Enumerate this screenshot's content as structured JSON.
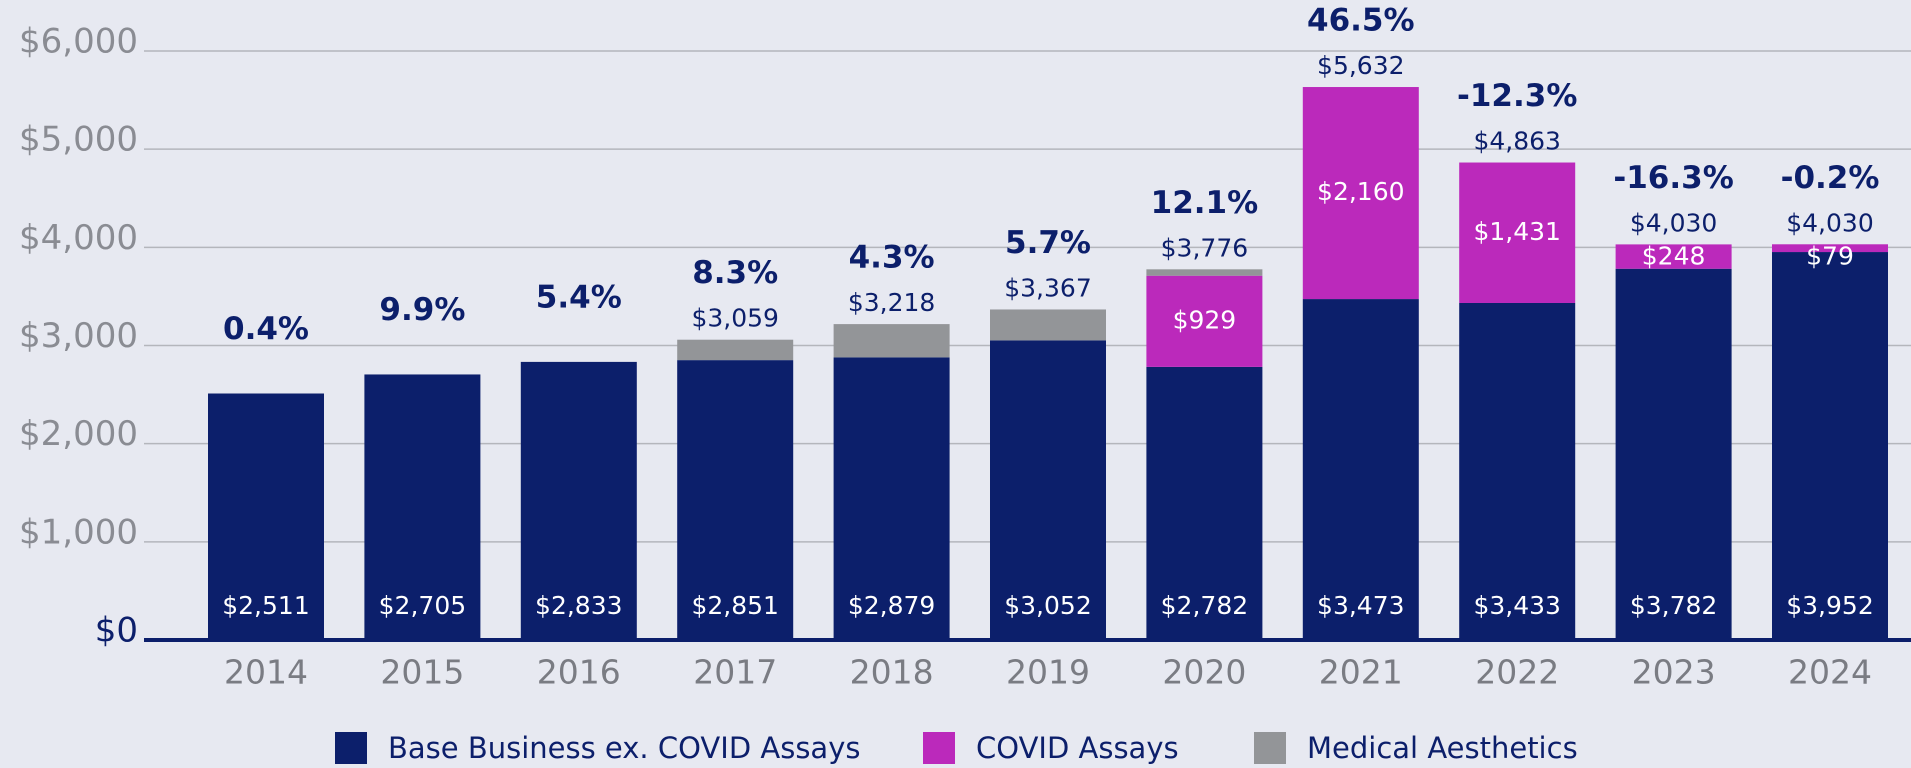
{
  "chart_data": {
    "type": "stacked_bar",
    "categories": [
      "2014",
      "2015",
      "2016",
      "2017",
      "2018",
      "2019",
      "2020",
      "2021",
      "2022",
      "2023",
      "2024"
    ],
    "series": [
      {
        "name": "Base Business ex. COVID Assays",
        "color": "#0c1f6b",
        "values": [
          2511,
          2705,
          2833,
          2851,
          2879,
          3052,
          2782,
          3473,
          3433,
          3782,
          3952
        ],
        "value_labels": [
          "$2,511",
          "$2,705",
          "$2,833",
          "$2,851",
          "$2,879",
          "$3,052",
          "$2,782",
          "$3,473",
          "$3,433",
          "$3,782",
          "$3,952"
        ]
      },
      {
        "name": "COVID Assays",
        "color": "#bb29bb",
        "values": [
          null,
          null,
          null,
          null,
          null,
          null,
          929,
          2160,
          1431,
          248,
          79
        ],
        "value_labels": [
          null,
          null,
          null,
          null,
          null,
          null,
          "$929",
          "$2,160",
          "$1,431",
          "$248",
          "$79"
        ]
      },
      {
        "name": "Medical Aesthetics",
        "color": "#939598",
        "values": [
          null,
          null,
          null,
          208,
          339,
          315,
          65,
          null,
          null,
          null,
          null
        ]
      }
    ],
    "totals": [
      null,
      null,
      null,
      3059,
      3218,
      3367,
      3776,
      5632,
      4863,
      4030,
      4030
    ],
    "total_labels": [
      null,
      null,
      null,
      "$3,059",
      "$3,218",
      "$3,367",
      "$3,776",
      "$5,632",
      "$4,863",
      "$4,030",
      "$4,030"
    ],
    "growth": [
      0.4,
      9.9,
      5.4,
      8.3,
      4.3,
      5.7,
      12.1,
      46.5,
      -12.3,
      -16.3,
      -0.2
    ],
    "growth_labels": [
      "0.4%",
      "9.9%",
      "5.4%",
      "8.3%",
      "4.3%",
      "5.7%",
      "12.1%",
      "46.5%",
      "-12.3%",
      "-16.3%",
      "-0.2%"
    ],
    "ylim": [
      0,
      6000
    ],
    "yticks": [
      {
        "value": 0,
        "label": "$0"
      },
      {
        "value": 1000,
        "label": "$1,000"
      },
      {
        "value": 2000,
        "label": "$2,000"
      },
      {
        "value": 3000,
        "label": "$3,000"
      },
      {
        "value": 4000,
        "label": "$4,000"
      },
      {
        "value": 5000,
        "label": "$5,000"
      },
      {
        "value": 6000,
        "label": "$6,000"
      }
    ],
    "grid": true,
    "legend": "bottom"
  }
}
